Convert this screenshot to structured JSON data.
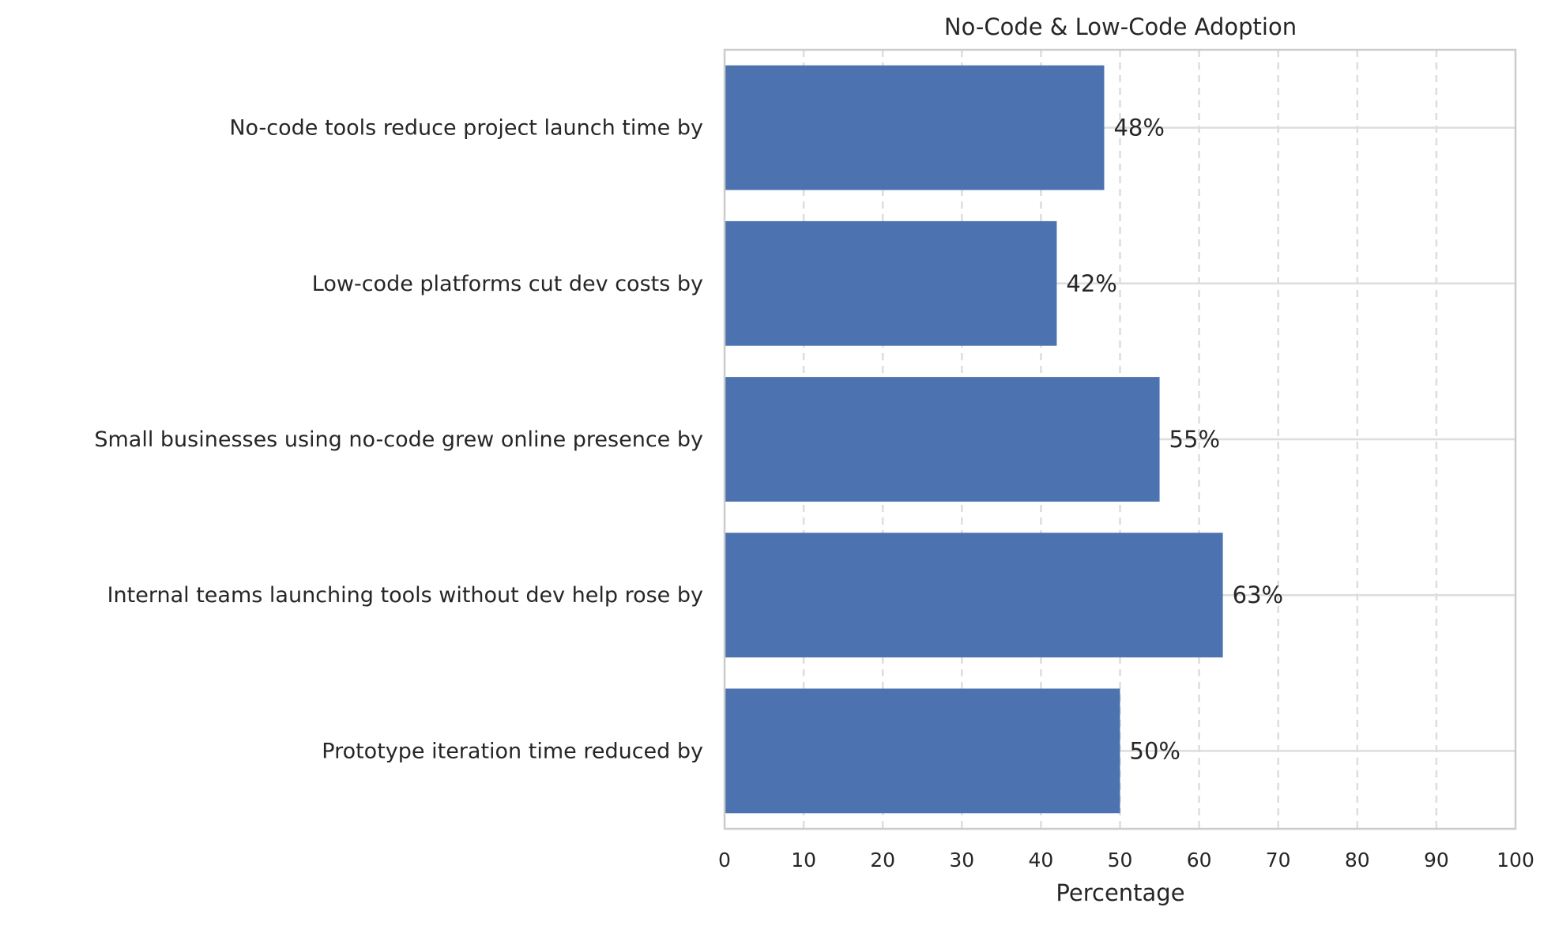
{
  "chart_data": {
    "type": "bar",
    "orientation": "horizontal",
    "title": "No-Code & Low-Code Adoption",
    "xlabel": "Percentage",
    "ylabel": "",
    "categories": [
      "No-code tools reduce project launch time by",
      "Low-code platforms cut dev costs by",
      "Small businesses using no-code grew online presence by",
      "Internal teams launching tools without dev help rose by",
      "Prototype iteration time reduced by"
    ],
    "values": [
      48,
      42,
      55,
      63,
      50
    ],
    "data_labels": [
      "48%",
      "42%",
      "55%",
      "63%",
      "50%"
    ],
    "xlim": [
      0,
      100
    ],
    "xticks": [
      "0",
      "10",
      "20",
      "30",
      "40",
      "50",
      "60",
      "70",
      "80",
      "90",
      "100"
    ],
    "grid": true,
    "bar_color": "#4c72b0"
  }
}
